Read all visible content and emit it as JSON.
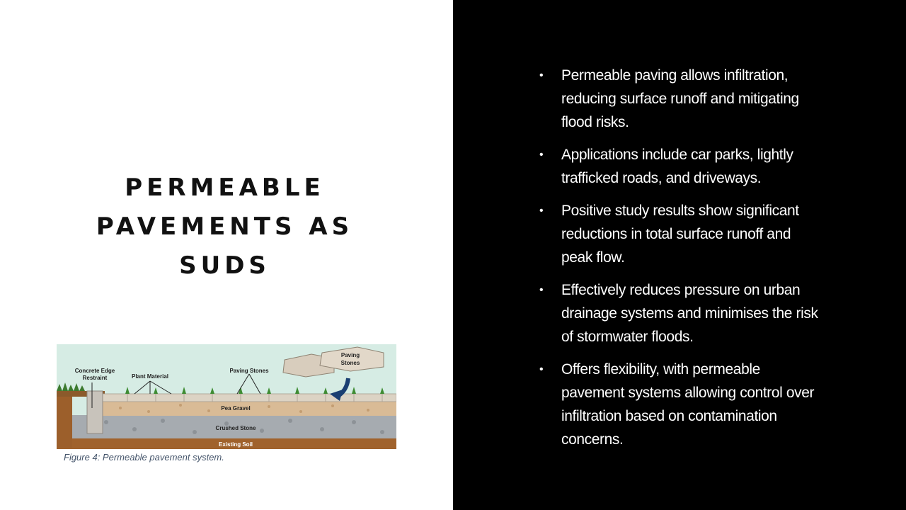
{
  "slide": {
    "title_lines": [
      "PERMEABLE",
      "PAVEMENTS AS",
      "SUDS"
    ],
    "figure": {
      "labels": {
        "concrete_edge": [
          "Concrete Edge",
          "Restraint"
        ],
        "plant_material": "Plant Material",
        "paving_stones_mid": "Paving Stones",
        "paving_stones_top": [
          "Paving",
          "Stones"
        ],
        "pea_gravel": "Pea Gravel",
        "crushed_stone": "Crushed Stone",
        "existing_soil": "Existing Soil"
      },
      "caption": "Figure 4: Permeable pavement system."
    },
    "bullets": [
      "Permeable paving allows infiltration, reducing surface runoff and mitigating flood risks.",
      "Applications include car parks, lightly trafficked roads, and driveways.",
      "Positive study results show significant reductions in total surface runoff and peak flow.",
      "Effectively reduces pressure on urban drainage systems and minimises the risk of stormwater floods.",
      "Offers flexibility, with permeable pavement systems allowing control over infiltration based on contamination concerns."
    ],
    "bullet_symbol": "•",
    "colors": {
      "left_background": "#ffffff",
      "right_background": "#000000",
      "caption_text": "#44546a",
      "figure_sky": "#d6ece4",
      "figure_soil": "#a0622c",
      "figure_gravel": "#d9bb96",
      "figure_stone": "#a6abb0",
      "figure_arrow": "#1a3f72"
    }
  }
}
